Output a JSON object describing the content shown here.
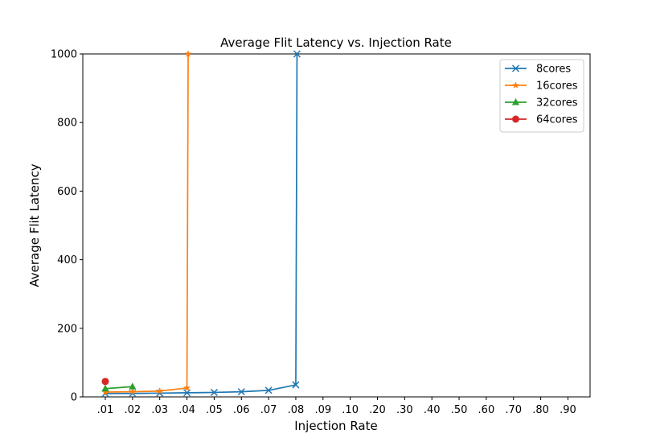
{
  "chart_data": {
    "type": "line",
    "title": "Average Flit Latency vs. Injection Rate",
    "xlabel": "Injection Rate",
    "ylabel": "Average Flit Latency",
    "categories": [
      ".01",
      ".02",
      ".03",
      ".04",
      ".05",
      ".06",
      ".07",
      ".08",
      ".09",
      ".10",
      ".20",
      ".30",
      ".40",
      ".50",
      ".60",
      ".70",
      ".80",
      ".90"
    ],
    "ylim": [
      0,
      1000
    ],
    "yticks": [
      0,
      200,
      400,
      600,
      800,
      1000
    ],
    "grid": false,
    "legend_position": "top-right",
    "series": [
      {
        "name": "8cores",
        "color": "#1f77b4",
        "marker": "x",
        "points": [
          [
            ".01",
            10
          ],
          [
            ".02",
            10
          ],
          [
            ".03",
            11
          ],
          [
            ".04",
            12
          ],
          [
            ".05",
            13
          ],
          [
            ".06",
            15
          ],
          [
            ".07",
            19
          ],
          [
            ".08",
            35
          ],
          [
            ".08",
            1000
          ]
        ]
      },
      {
        "name": "16cores",
        "color": "#ff7f0e",
        "marker": "star",
        "points": [
          [
            ".01",
            14
          ],
          [
            ".02",
            15
          ],
          [
            ".03",
            17
          ],
          [
            ".04",
            26
          ],
          [
            ".04",
            1000
          ]
        ]
      },
      {
        "name": "32cores",
        "color": "#2ca02c",
        "marker": "triangle",
        "points": [
          [
            ".01",
            24
          ],
          [
            ".02",
            30
          ]
        ]
      },
      {
        "name": "64cores",
        "color": "#d62728",
        "marker": "circle",
        "points": [
          [
            ".01",
            45
          ]
        ]
      }
    ]
  }
}
